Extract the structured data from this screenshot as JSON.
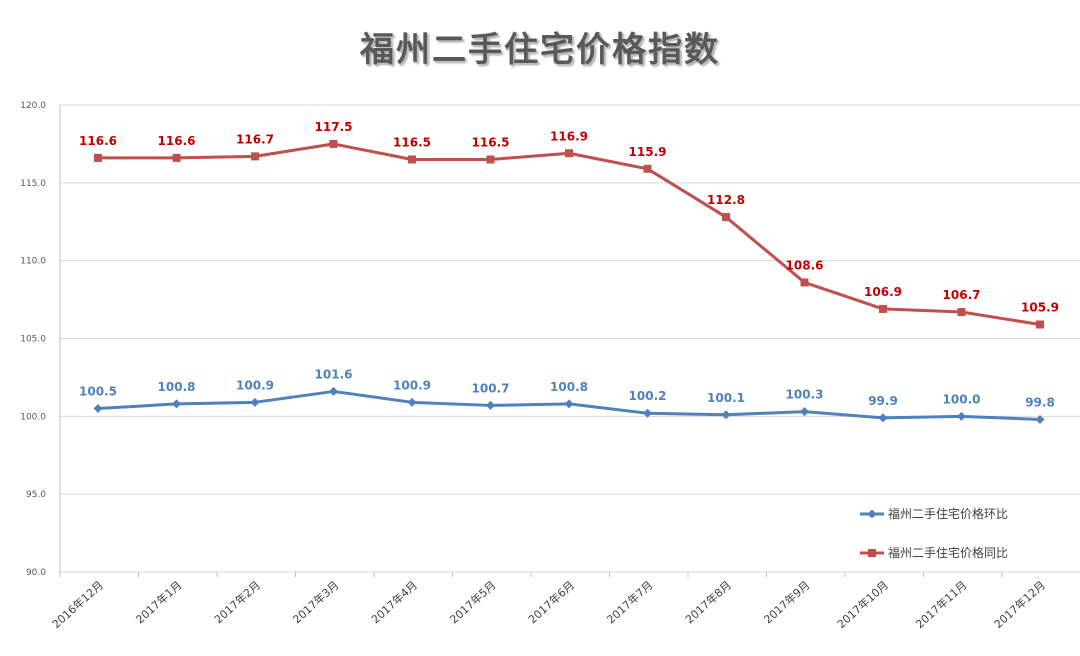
{
  "chart_data": {
    "type": "line",
    "title": "福州二手住宅价格指数",
    "xlabel": "",
    "ylabel": "",
    "categories": [
      "2016年12月",
      "2017年1月",
      "2017年2月",
      "2017年3月",
      "2017年4月",
      "2017年5月",
      "2017年6月",
      "2017年7月",
      "2017年8月",
      "2017年9月",
      "2017年10月",
      "2017年11月",
      "2017年12月"
    ],
    "ylim": [
      90.0,
      120.0
    ],
    "yticks": [
      "90.0",
      "95.0",
      "100.0",
      "105.0",
      "110.0",
      "115.0",
      "120.0"
    ],
    "grid": true,
    "legend_position": "right",
    "series": [
      {
        "name": "福州二手住宅价格环比",
        "color": "#4f81bd",
        "label_color": "#4f81bd",
        "marker": "diamond",
        "values": [
          100.5,
          100.8,
          100.9,
          101.6,
          100.9,
          100.7,
          100.8,
          100.2,
          100.1,
          100.3,
          99.9,
          100.0,
          99.8
        ],
        "labels": [
          "100.5",
          "100.8",
          "100.9",
          "101.6",
          "100.9",
          "100.7",
          "100.8",
          "100.2",
          "100.1",
          "100.3",
          "99.9",
          "100.0",
          "99.8"
        ]
      },
      {
        "name": "福州二手住宅价格同比",
        "color": "#c0504d",
        "label_color": "#c00000",
        "marker": "square",
        "values": [
          116.6,
          116.6,
          116.7,
          117.5,
          116.5,
          116.5,
          116.9,
          115.9,
          112.8,
          108.6,
          106.9,
          106.7,
          105.9
        ],
        "labels": [
          "116.6",
          "116.6",
          "116.7",
          "117.5",
          "116.5",
          "116.5",
          "116.9",
          "115.9",
          "112.8",
          "108.6",
          "106.9",
          "106.7",
          "105.9"
        ]
      }
    ]
  }
}
